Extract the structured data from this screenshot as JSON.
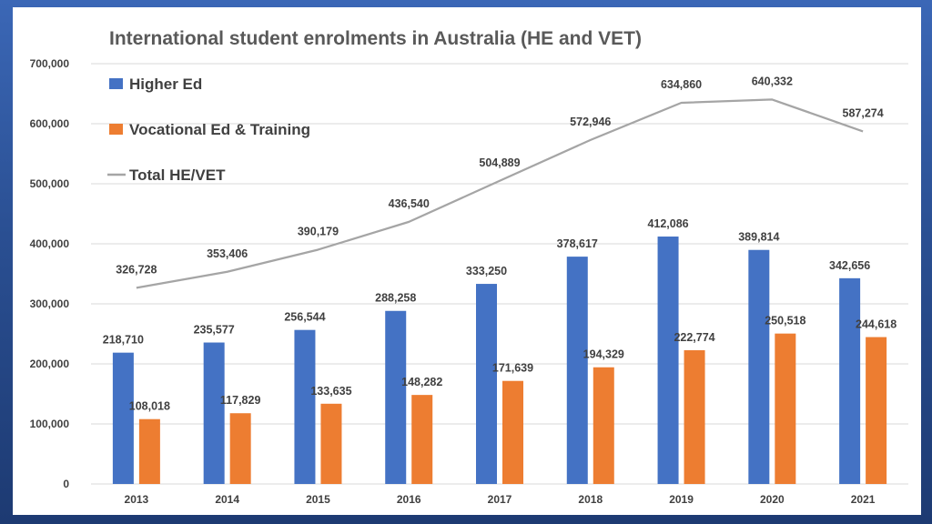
{
  "chart_data": {
    "type": "bar",
    "title": "International student enrolments in Australia (HE and VET)",
    "categories": [
      "2013",
      "2014",
      "2015",
      "2016",
      "2017",
      "2018",
      "2019",
      "2020",
      "2021"
    ],
    "series": [
      {
        "name": "Higher Ed",
        "type": "bar",
        "color": "#4472c4",
        "values": [
          218710,
          235577,
          256544,
          288258,
          333250,
          378617,
          412086,
          389814,
          342656
        ],
        "labels": [
          "218,710",
          "235,577",
          "256,544",
          "288,258",
          "333,250",
          "378,617",
          "412,086",
          "389,814",
          "342,656"
        ]
      },
      {
        "name": "Vocational  Ed & Training",
        "type": "bar",
        "color": "#ed7d31",
        "values": [
          108018,
          117829,
          133635,
          148282,
          171639,
          194329,
          222774,
          250518,
          244618
        ],
        "labels": [
          "108,018",
          "117,829",
          "133,635",
          "148,282",
          "171,639",
          "194,329",
          "222,774",
          "250,518",
          "244,618"
        ]
      },
      {
        "name": "Total HE/VET",
        "type": "line",
        "color": "#a5a5a5",
        "values": [
          326728,
          353406,
          390179,
          436540,
          504889,
          572946,
          634860,
          640332,
          587274
        ],
        "labels": [
          "326,728",
          "353,406",
          "390,179",
          "436,540",
          "504,889",
          "572,946",
          "634,860",
          "640,332",
          "587,274"
        ]
      }
    ],
    "ylim": [
      0,
      700000
    ],
    "yticks": [
      0,
      100000,
      200000,
      300000,
      400000,
      500000,
      600000,
      700000
    ],
    "ytick_labels": [
      "0",
      "100,000",
      "200,000",
      "300,000",
      "400,000",
      "500,000",
      "600,000",
      "700,000"
    ],
    "xlabel": "",
    "ylabel": "",
    "grid": true,
    "legend_position": "top-left"
  }
}
